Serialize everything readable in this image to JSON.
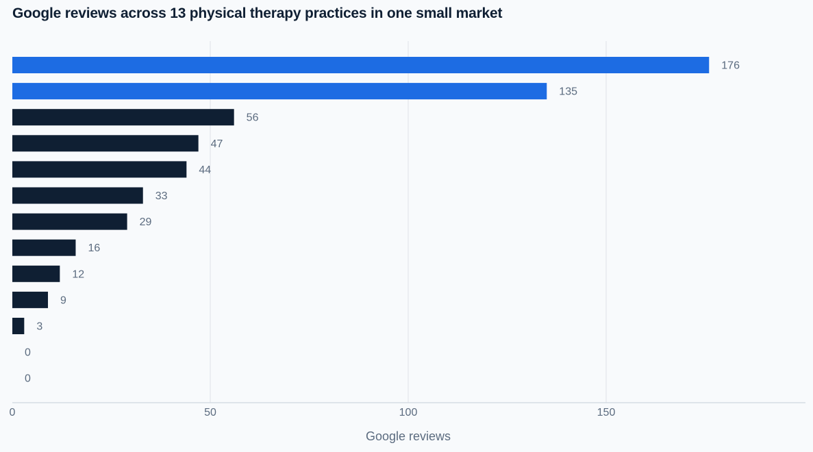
{
  "chart_data": {
    "type": "bar",
    "orientation": "horizontal",
    "title": "Google reviews across 13 physical therapy practices in one small market",
    "xlabel": "Google reviews",
    "ylabel": "",
    "xlim": [
      0,
      200
    ],
    "xticks": [
      0,
      50,
      100,
      150
    ],
    "grid": true,
    "values": [
      176,
      135,
      56,
      47,
      44,
      33,
      29,
      16,
      12,
      9,
      3,
      0,
      0
    ],
    "highlight_count": 2,
    "colors": {
      "highlight": "#1d6ce3",
      "default": "#0f1f33",
      "gridline": "#e3e7ec",
      "axis": "#cfd6de"
    }
  }
}
